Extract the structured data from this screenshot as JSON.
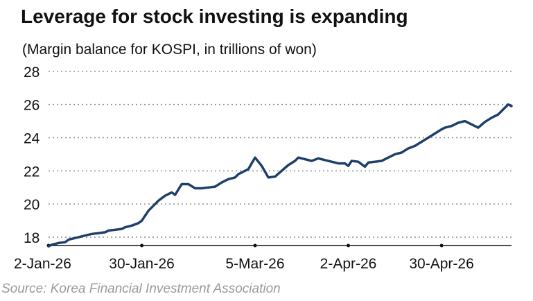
{
  "chart_data": {
    "type": "line",
    "title": "Leverage for stock investing is expanding",
    "subtitle": "(Margin balance for KOSPI, in trillions of won)",
    "source": "Source: Korea Financial Investment Association",
    "ylim": [
      17.5,
      28.2
    ],
    "yticks": [
      18,
      20,
      22,
      24,
      26,
      28
    ],
    "grid": true,
    "line_color": "#1f3f6b",
    "x_start": "2026-01-02",
    "x_end": "2026-05-21",
    "xticks": [
      {
        "date": "2026-01-02",
        "label": "2-Jan-26"
      },
      {
        "date": "2026-01-30",
        "label": "30-Jan-26"
      },
      {
        "date": "2026-03-05",
        "label": "5-Mar-26"
      },
      {
        "date": "2026-04-02",
        "label": "2-Apr-26"
      },
      {
        "date": "2026-04-30",
        "label": "30-Apr-26"
      }
    ],
    "series": [
      {
        "x": [
          "2026-01-02",
          "2026-01-03",
          "2026-01-05",
          "2026-01-07",
          "2026-01-08",
          "2026-01-10",
          "2026-01-12",
          "2026-01-13",
          "2026-01-15",
          "2026-01-17",
          "2026-01-19",
          "2026-01-20",
          "2026-01-22",
          "2026-01-24",
          "2026-01-25",
          "2026-01-27",
          "2026-01-29",
          "2026-01-30",
          "2026-02-01",
          "2026-02-03",
          "2026-02-04",
          "2026-02-06",
          "2026-02-08",
          "2026-02-09",
          "2026-02-11",
          "2026-02-13",
          "2026-02-15",
          "2026-02-17",
          "2026-02-19",
          "2026-02-21",
          "2026-02-23",
          "2026-02-25",
          "2026-02-27",
          "2026-02-28",
          "2026-03-02",
          "2026-03-03",
          "2026-03-05",
          "2026-03-07",
          "2026-03-09",
          "2026-03-11",
          "2026-03-13",
          "2026-03-15",
          "2026-03-17",
          "2026-03-18",
          "2026-03-20",
          "2026-03-22",
          "2026-03-24",
          "2026-03-26",
          "2026-03-28",
          "2026-03-30",
          "2026-04-01",
          "2026-04-02",
          "2026-04-03",
          "2026-04-05",
          "2026-04-07",
          "2026-04-08",
          "2026-04-10",
          "2026-04-12",
          "2026-04-14",
          "2026-04-16",
          "2026-04-18",
          "2026-04-20",
          "2026-04-22",
          "2026-04-24",
          "2026-04-26",
          "2026-04-28",
          "2026-04-30",
          "2026-05-01",
          "2026-05-03",
          "2026-05-05",
          "2026-05-07",
          "2026-05-09",
          "2026-05-11",
          "2026-05-13",
          "2026-05-15",
          "2026-05-17",
          "2026-05-19",
          "2026-05-20",
          "2026-05-21"
        ],
        "y": [
          17.45,
          17.55,
          17.65,
          17.7,
          17.85,
          17.95,
          18.05,
          18.1,
          18.2,
          18.25,
          18.3,
          18.4,
          18.45,
          18.5,
          18.6,
          18.7,
          18.85,
          19.0,
          19.6,
          20.0,
          20.2,
          20.5,
          20.7,
          20.55,
          21.2,
          21.2,
          20.95,
          20.95,
          21.0,
          21.05,
          21.3,
          21.5,
          21.6,
          21.8,
          22.0,
          22.1,
          22.8,
          22.3,
          21.6,
          21.65,
          22.0,
          22.35,
          22.6,
          22.8,
          22.7,
          22.6,
          22.75,
          22.65,
          22.55,
          22.45,
          22.45,
          22.3,
          22.6,
          22.55,
          22.25,
          22.5,
          22.55,
          22.6,
          22.8,
          23.0,
          23.1,
          23.35,
          23.5,
          23.75,
          24.0,
          24.25,
          24.5,
          24.6,
          24.7,
          24.9,
          25.0,
          24.8,
          24.6,
          24.95,
          25.2,
          25.4,
          25.8,
          26.0,
          25.9
        ]
      }
    ]
  }
}
